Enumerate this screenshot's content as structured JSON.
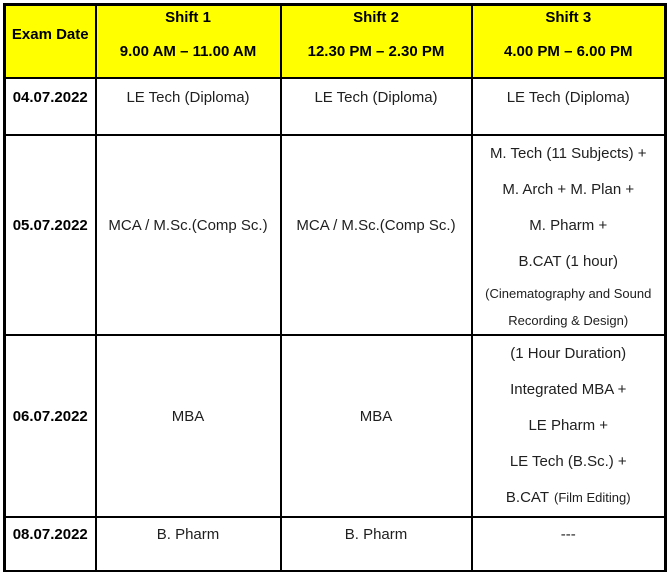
{
  "table": {
    "header": {
      "exam_date_label": "Exam Date",
      "shifts": [
        {
          "name": "Shift 1",
          "time": "9.00 AM – 11.00 AM"
        },
        {
          "name": "Shift 2",
          "time": "12.30 PM – 2.30 PM"
        },
        {
          "name": "Shift 3",
          "time": "4.00 PM – 6.00 PM"
        }
      ]
    },
    "rows": [
      {
        "date": "04.07.2022",
        "shift1": "LE Tech (Diploma)",
        "shift2": "LE Tech (Diploma)",
        "shift3": "LE Tech (Diploma)"
      },
      {
        "date": "05.07.2022",
        "shift1": "MCA / M.Sc.(Comp Sc.)",
        "shift2": "MCA / M.Sc.(Comp Sc.)",
        "shift3_lines": [
          "M. Tech (11 Subjects) +",
          "M. Arch + M. Plan +",
          "M. Pharm +",
          "B.CAT (1 hour)"
        ],
        "shift3_note_lines": [
          "(Cinematography and Sound",
          "Recording & Design)"
        ]
      },
      {
        "date": "06.07.2022",
        "shift1": "MBA",
        "shift2": "MBA",
        "shift3_lines": [
          "(1 Hour Duration)",
          "Integrated MBA +",
          "LE Pharm +",
          "LE Tech (B.Sc.) +"
        ],
        "shift3_last_main": "B.CAT",
        "shift3_last_note": "(Film Editing)"
      },
      {
        "date": "08.07.2022",
        "shift1": "B. Pharm",
        "shift2": "B. Pharm",
        "shift3": "---"
      }
    ]
  },
  "colors": {
    "header_bg": "#FFFF00",
    "border": "#000000",
    "header_text": "#000000",
    "body_text": "#202020"
  }
}
